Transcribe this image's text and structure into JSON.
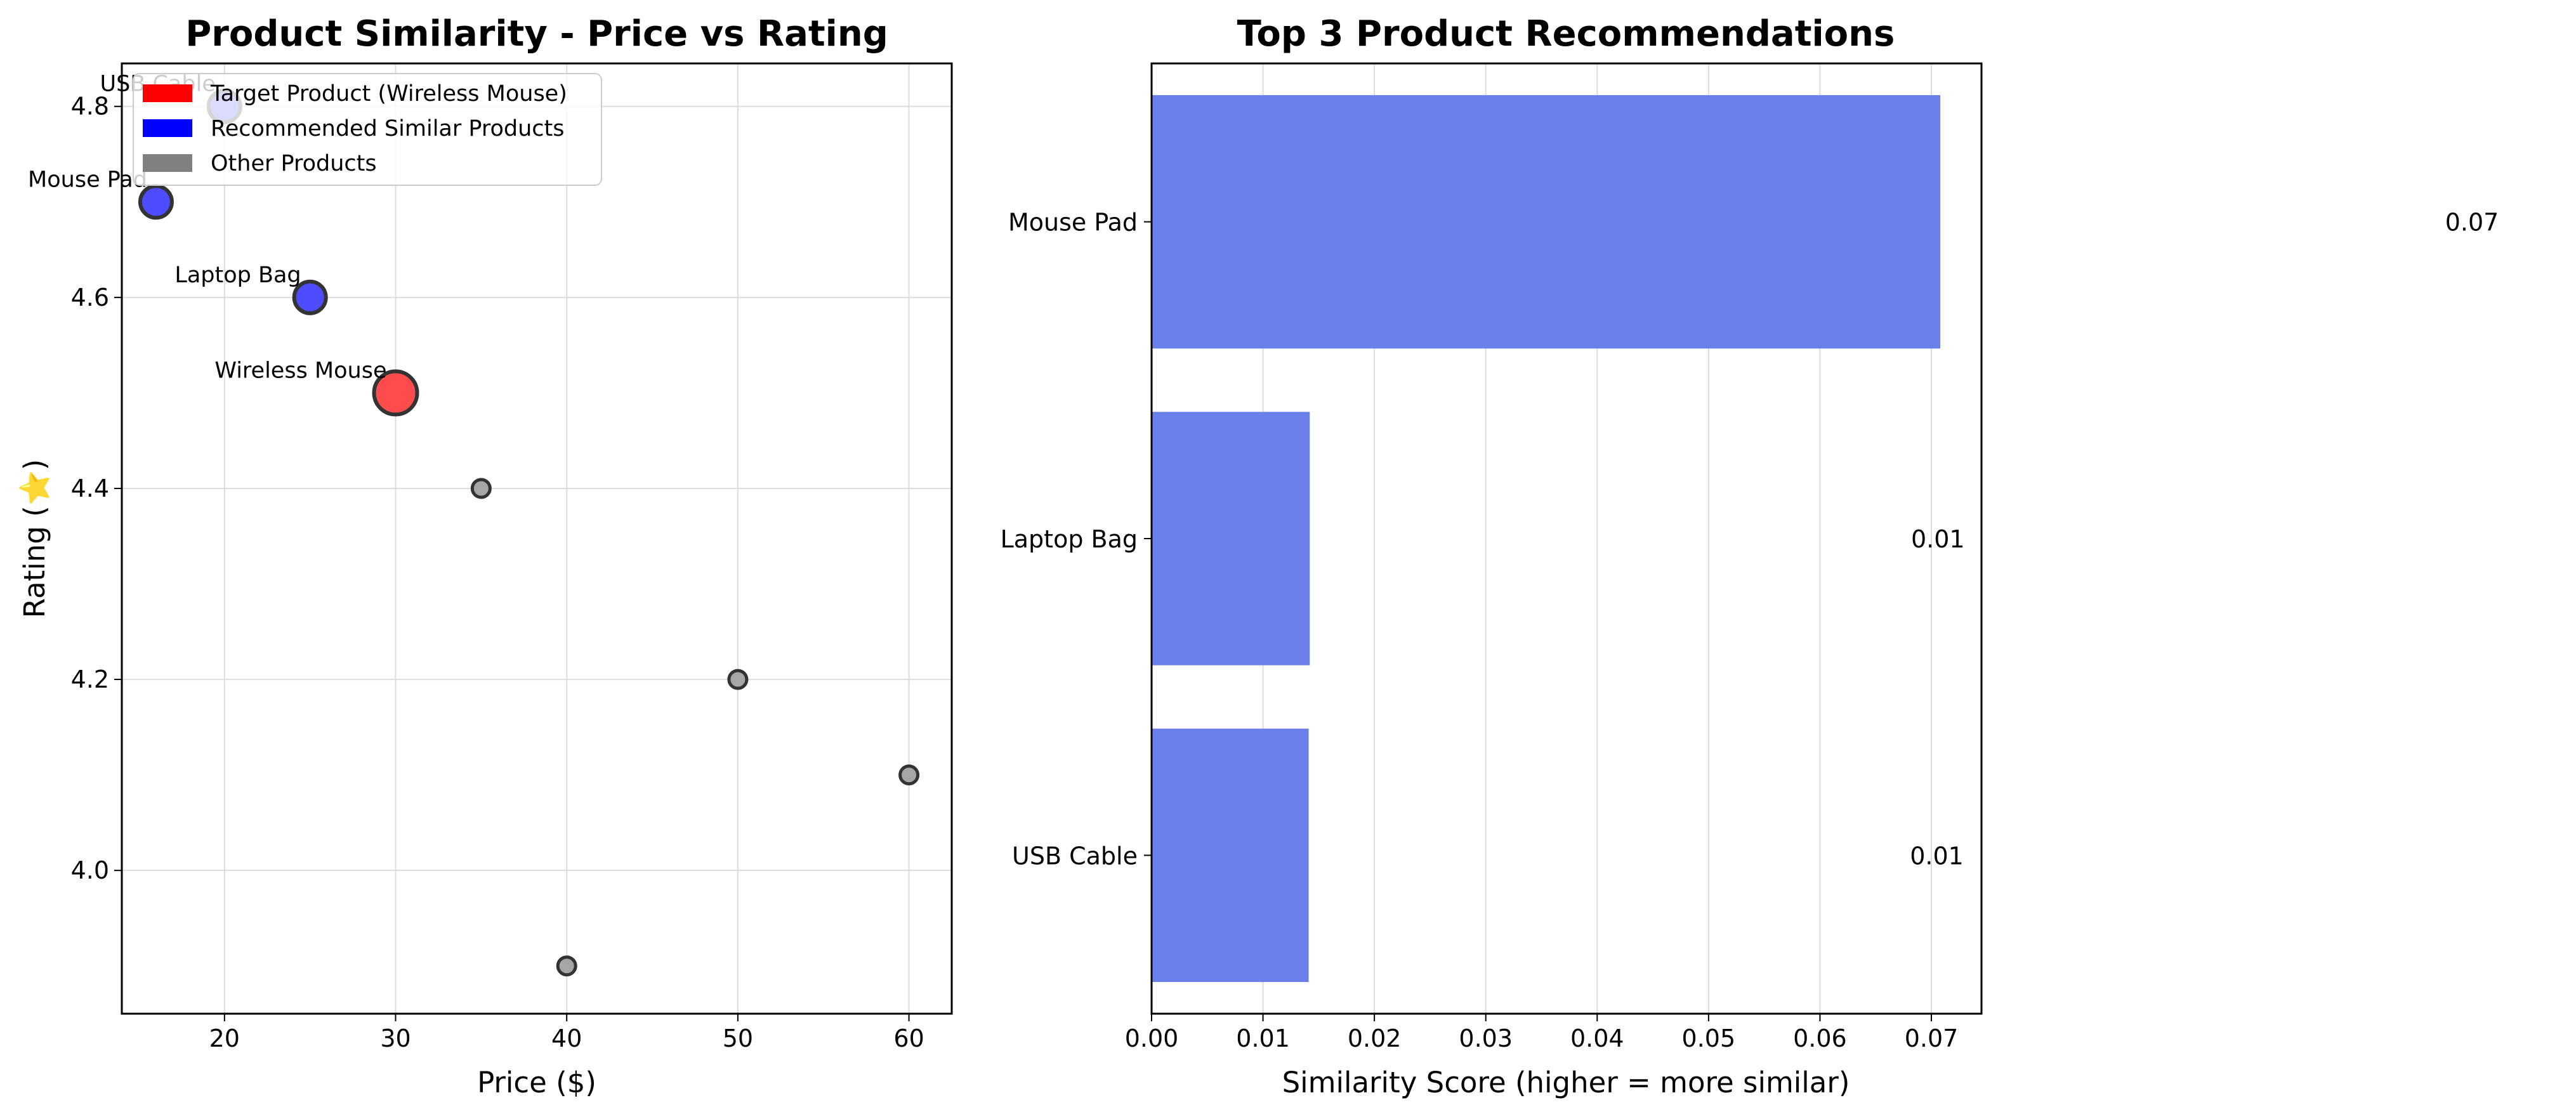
{
  "chart_data": [
    {
      "type": "scatter",
      "title": "Product Similarity - Price vs Rating",
      "xlabel": "Price ($)",
      "ylabel": "Rating (⭐)",
      "xlim": [
        14,
        62.5
      ],
      "ylim": [
        3.85,
        4.845
      ],
      "xticks": [
        20,
        30,
        40,
        50,
        60
      ],
      "yticks": [
        4.0,
        4.2,
        4.4,
        4.6,
        4.8
      ],
      "grid": true,
      "legend_position": "top-left",
      "legend": [
        {
          "label": "Target Product (Wireless Mouse)",
          "color": "#ff0000"
        },
        {
          "label": "Recommended Similar Products",
          "color": "#0000ff"
        },
        {
          "label": "Other Products",
          "color": "#808080"
        }
      ],
      "points": [
        {
          "x": 30,
          "y": 4.5,
          "group": "target",
          "label": "Wireless Mouse"
        },
        {
          "x": 16,
          "y": 4.7,
          "group": "recommended",
          "label": "Mouse Pad"
        },
        {
          "x": 25,
          "y": 4.6,
          "group": "recommended",
          "label": "Laptop Bag"
        },
        {
          "x": 20,
          "y": 4.8,
          "group": "recommended",
          "label": "USB Cable"
        },
        {
          "x": 35,
          "y": 4.4,
          "group": "other",
          "label": ""
        },
        {
          "x": 50,
          "y": 4.2,
          "group": "other",
          "label": ""
        },
        {
          "x": 60,
          "y": 4.1,
          "group": "other",
          "label": ""
        },
        {
          "x": 40,
          "y": 3.9,
          "group": "other",
          "label": ""
        }
      ],
      "colors": {
        "target": "#ff4d4d",
        "recommended": "#4d4dff",
        "other": "#a6a6a6",
        "edge": "#333333"
      }
    },
    {
      "type": "bar",
      "orientation": "horizontal",
      "title": "Top 3 Product Recommendations",
      "xlabel": "Similarity Score (higher = more similar)",
      "ylabel": "",
      "xlim": [
        0,
        0.0745
      ],
      "xticks": [
        0.0,
        0.01,
        0.02,
        0.03,
        0.04,
        0.05,
        0.06,
        0.07
      ],
      "xtick_labels": [
        "0.00",
        "0.01",
        "0.02",
        "0.03",
        "0.04",
        "0.05",
        "0.06",
        "0.07"
      ],
      "grid": true,
      "categories": [
        "Mouse Pad",
        "Laptop Bag",
        "USB Cable"
      ],
      "values": [
        0.0708,
        0.0142,
        0.0141
      ],
      "value_labels": [
        "0.07",
        "0.01",
        "0.01"
      ],
      "bar_color": "#6a7fea"
    }
  ]
}
